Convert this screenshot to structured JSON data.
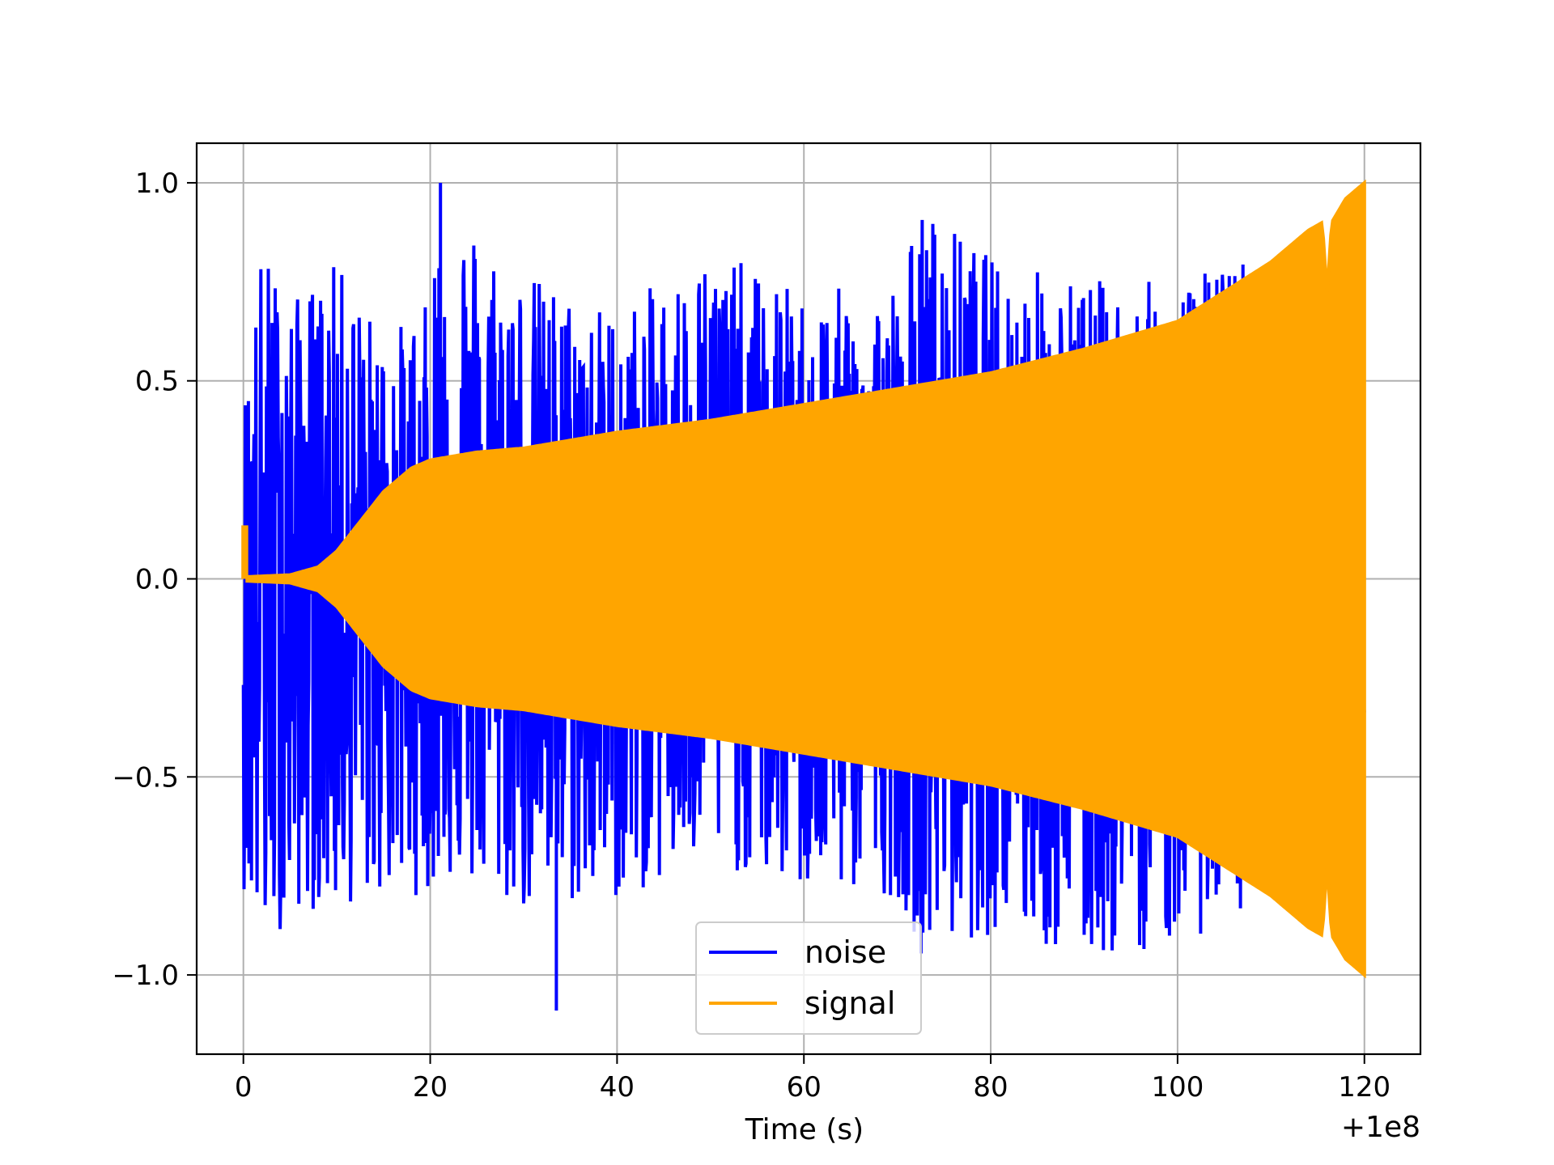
{
  "chart_data": {
    "type": "line",
    "title": "",
    "xlabel": "Time (s)",
    "ylabel": "",
    "x_offset_label": "+1e8",
    "xlim": [
      -5,
      126
    ],
    "ylim": [
      -1.2,
      1.1
    ],
    "xticks": [
      0,
      20,
      40,
      60,
      80,
      100,
      120
    ],
    "xtick_labels": [
      "0",
      "20",
      "40",
      "60",
      "80",
      "100",
      "120"
    ],
    "yticks": [
      1.0,
      0.5,
      0.0,
      -0.5,
      -1.0
    ],
    "ytick_labels": [
      "1.0",
      "0.5",
      "0.0",
      "−0.5",
      "−1.0"
    ],
    "grid": true,
    "legend_position": "lower-center",
    "series": [
      {
        "name": "noise",
        "color": "#0000ff",
        "x_range": [
          0,
          120
        ],
        "envelope": {
          "x": [
            0,
            2,
            5,
            10,
            15,
            20,
            21,
            30,
            40,
            50,
            60,
            70,
            72.6,
            80,
            90,
            100,
            108,
            110
          ],
          "upper": [
            0.45,
            0.85,
            0.7,
            0.8,
            0.62,
            0.7,
            1.0,
            0.78,
            0.68,
            0.84,
            0.72,
            0.76,
            0.95,
            0.82,
            0.76,
            0.75,
            0.83,
            0.6
          ],
          "lower": [
            -0.78,
            -0.97,
            -0.84,
            -0.84,
            -0.8,
            -0.8,
            -0.75,
            -0.85,
            -0.82,
            -0.72,
            -0.8,
            -0.8,
            -0.95,
            -0.9,
            -0.98,
            -0.92,
            -0.85,
            -0.6
          ]
        },
        "extremes": {
          "max": 1.0,
          "min": -1.09,
          "x_at_min": 33.5
        }
      },
      {
        "name": "signal",
        "color": "#ffa500",
        "x_range": [
          0,
          120
        ],
        "envelope": {
          "x": [
            0,
            5,
            8,
            10,
            12,
            15,
            18,
            20,
            25,
            30,
            40,
            50,
            60,
            70,
            80,
            90,
            100,
            110,
            114,
            115.5,
            116,
            116.5,
            118,
            120
          ],
          "amplitude": [
            0.005,
            0.01,
            0.03,
            0.07,
            0.13,
            0.22,
            0.28,
            0.3,
            0.32,
            0.33,
            0.37,
            0.4,
            0.44,
            0.48,
            0.52,
            0.58,
            0.65,
            0.8,
            0.88,
            0.9,
            0.72,
            0.9,
            0.96,
            1.0
          ]
        }
      }
    ]
  }
}
